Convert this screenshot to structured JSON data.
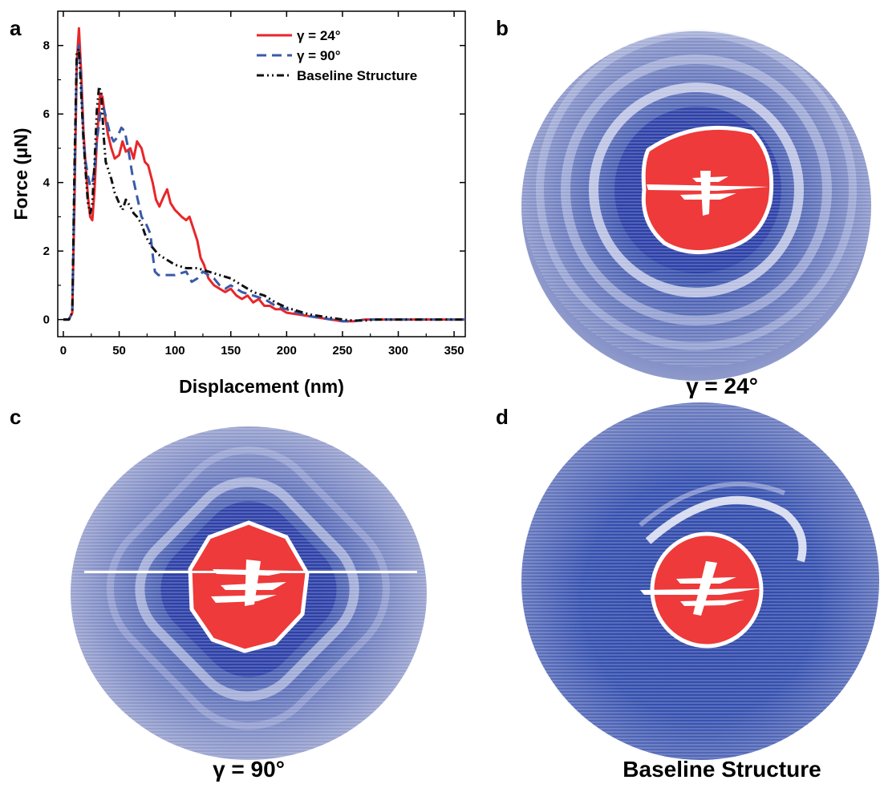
{
  "panels": {
    "a": {
      "letter": "a"
    },
    "b": {
      "letter": "b",
      "caption": "γ = 24°"
    },
    "c": {
      "letter": "c",
      "caption": "γ = 90°"
    },
    "d": {
      "letter": "d",
      "caption": "Baseline Structure"
    }
  },
  "colors": {
    "gamma24": "#e8262a",
    "gamma90": "#3a5aa8",
    "baseline": "#111111",
    "substrate": "#8a95c8",
    "deep_blue": "#2f47a8",
    "contact": "#ee3a3a"
  },
  "chart_data": {
    "type": "line",
    "xlabel": "Displacement (nm)",
    "ylabel": "Force (μN)",
    "xlim": [
      -5,
      360
    ],
    "ylim": [
      -0.5,
      9.0
    ],
    "xticks": [
      0,
      50,
      100,
      150,
      200,
      250,
      300,
      350
    ],
    "yticks": [
      0,
      2,
      4,
      6,
      8
    ],
    "grid": false,
    "legend_position": "top-right",
    "series": [
      {
        "name": "γ = 24°",
        "style": "solid",
        "color": "#e8262a",
        "x": [
          0,
          5,
          8,
          10,
          12,
          14,
          16,
          18,
          20,
          22,
          24,
          26,
          28,
          30,
          33,
          35,
          37,
          40,
          43,
          46,
          50,
          53,
          56,
          60,
          63,
          66,
          70,
          73,
          76,
          80,
          83,
          86,
          90,
          93,
          96,
          100,
          103,
          106,
          110,
          113,
          116,
          120,
          123,
          126,
          130,
          135,
          140,
          145,
          150,
          155,
          160,
          165,
          170,
          175,
          180,
          185,
          190,
          195,
          200,
          210,
          220,
          230,
          240,
          250,
          260,
          270,
          280,
          300,
          320,
          340,
          360
        ],
        "y": [
          0,
          0,
          0.2,
          3.5,
          7.5,
          8.5,
          7.2,
          5.5,
          4.5,
          3.6,
          3.0,
          2.9,
          3.8,
          5.2,
          6.6,
          6.5,
          6.0,
          5.4,
          5.0,
          4.7,
          4.8,
          5.2,
          4.9,
          5.0,
          4.7,
          5.2,
          5.0,
          4.6,
          4.5,
          4.0,
          3.5,
          3.3,
          3.6,
          3.8,
          3.4,
          3.2,
          3.1,
          3.0,
          2.9,
          3.0,
          2.7,
          2.3,
          1.8,
          1.6,
          1.2,
          1.0,
          0.9,
          0.8,
          0.9,
          0.7,
          0.6,
          0.7,
          0.5,
          0.6,
          0.4,
          0.4,
          0.3,
          0.3,
          0.2,
          0.15,
          0.1,
          0.05,
          0.0,
          -0.05,
          -0.05,
          0.0,
          0.0,
          0.0,
          0.0,
          0.0,
          0.0
        ]
      },
      {
        "name": "γ = 90°",
        "style": "dashed",
        "color": "#3a5aa8",
        "x": [
          0,
          5,
          8,
          10,
          12,
          14,
          16,
          18,
          20,
          22,
          24,
          26,
          28,
          30,
          33,
          36,
          39,
          42,
          45,
          48,
          52,
          55,
          58,
          62,
          66,
          70,
          74,
          78,
          80,
          82,
          85,
          90,
          95,
          100,
          110,
          115,
          120,
          125,
          130,
          135,
          140,
          145,
          150,
          160,
          170,
          180,
          190,
          200,
          210,
          220,
          230,
          240,
          250,
          260,
          270,
          280,
          300,
          320,
          340,
          360
        ],
        "y": [
          0,
          0,
          0.2,
          4.0,
          7.6,
          8.0,
          7.0,
          5.2,
          4.6,
          4.2,
          3.9,
          4.0,
          4.4,
          5.2,
          6.0,
          6.2,
          5.8,
          5.4,
          5.2,
          5.3,
          5.6,
          5.5,
          5.0,
          4.2,
          3.6,
          3.0,
          2.8,
          2.5,
          1.9,
          1.4,
          1.3,
          1.3,
          1.3,
          1.3,
          1.4,
          1.1,
          1.2,
          1.4,
          1.3,
          1.2,
          1.0,
          0.9,
          1.0,
          0.8,
          0.7,
          0.6,
          0.4,
          0.3,
          0.2,
          0.1,
          0.05,
          0.0,
          -0.05,
          -0.05,
          0.0,
          0.0,
          0.0,
          0.0,
          0.0,
          0.0
        ]
      },
      {
        "name": "Baseline Structure",
        "style": "dashdotdot",
        "color": "#111111",
        "x": [
          0,
          5,
          8,
          10,
          12,
          14,
          16,
          18,
          20,
          22,
          24,
          26,
          28,
          30,
          32,
          34,
          36,
          38,
          40,
          43,
          46,
          50,
          53,
          56,
          60,
          63,
          66,
          70,
          73,
          76,
          80,
          85,
          90,
          95,
          100,
          110,
          120,
          130,
          140,
          150,
          160,
          170,
          180,
          190,
          200,
          210,
          220,
          230,
          240,
          250,
          260,
          270,
          280,
          300,
          320,
          340,
          360
        ],
        "y": [
          0,
          0,
          0.2,
          4.5,
          7.8,
          7.9,
          6.6,
          5.3,
          4.3,
          3.4,
          3.1,
          3.4,
          4.6,
          6.1,
          6.8,
          6.6,
          5.4,
          4.6,
          4.4,
          4.1,
          3.7,
          3.4,
          3.2,
          3.5,
          3.3,
          3.1,
          3.0,
          2.8,
          2.5,
          2.3,
          2.1,
          1.9,
          1.8,
          1.7,
          1.6,
          1.5,
          1.5,
          1.4,
          1.3,
          1.2,
          1.0,
          0.8,
          0.7,
          0.5,
          0.35,
          0.25,
          0.15,
          0.1,
          0.05,
          0.0,
          -0.03,
          -0.03,
          0.0,
          0.0,
          0.0,
          0.0,
          0.0
        ]
      }
    ]
  }
}
